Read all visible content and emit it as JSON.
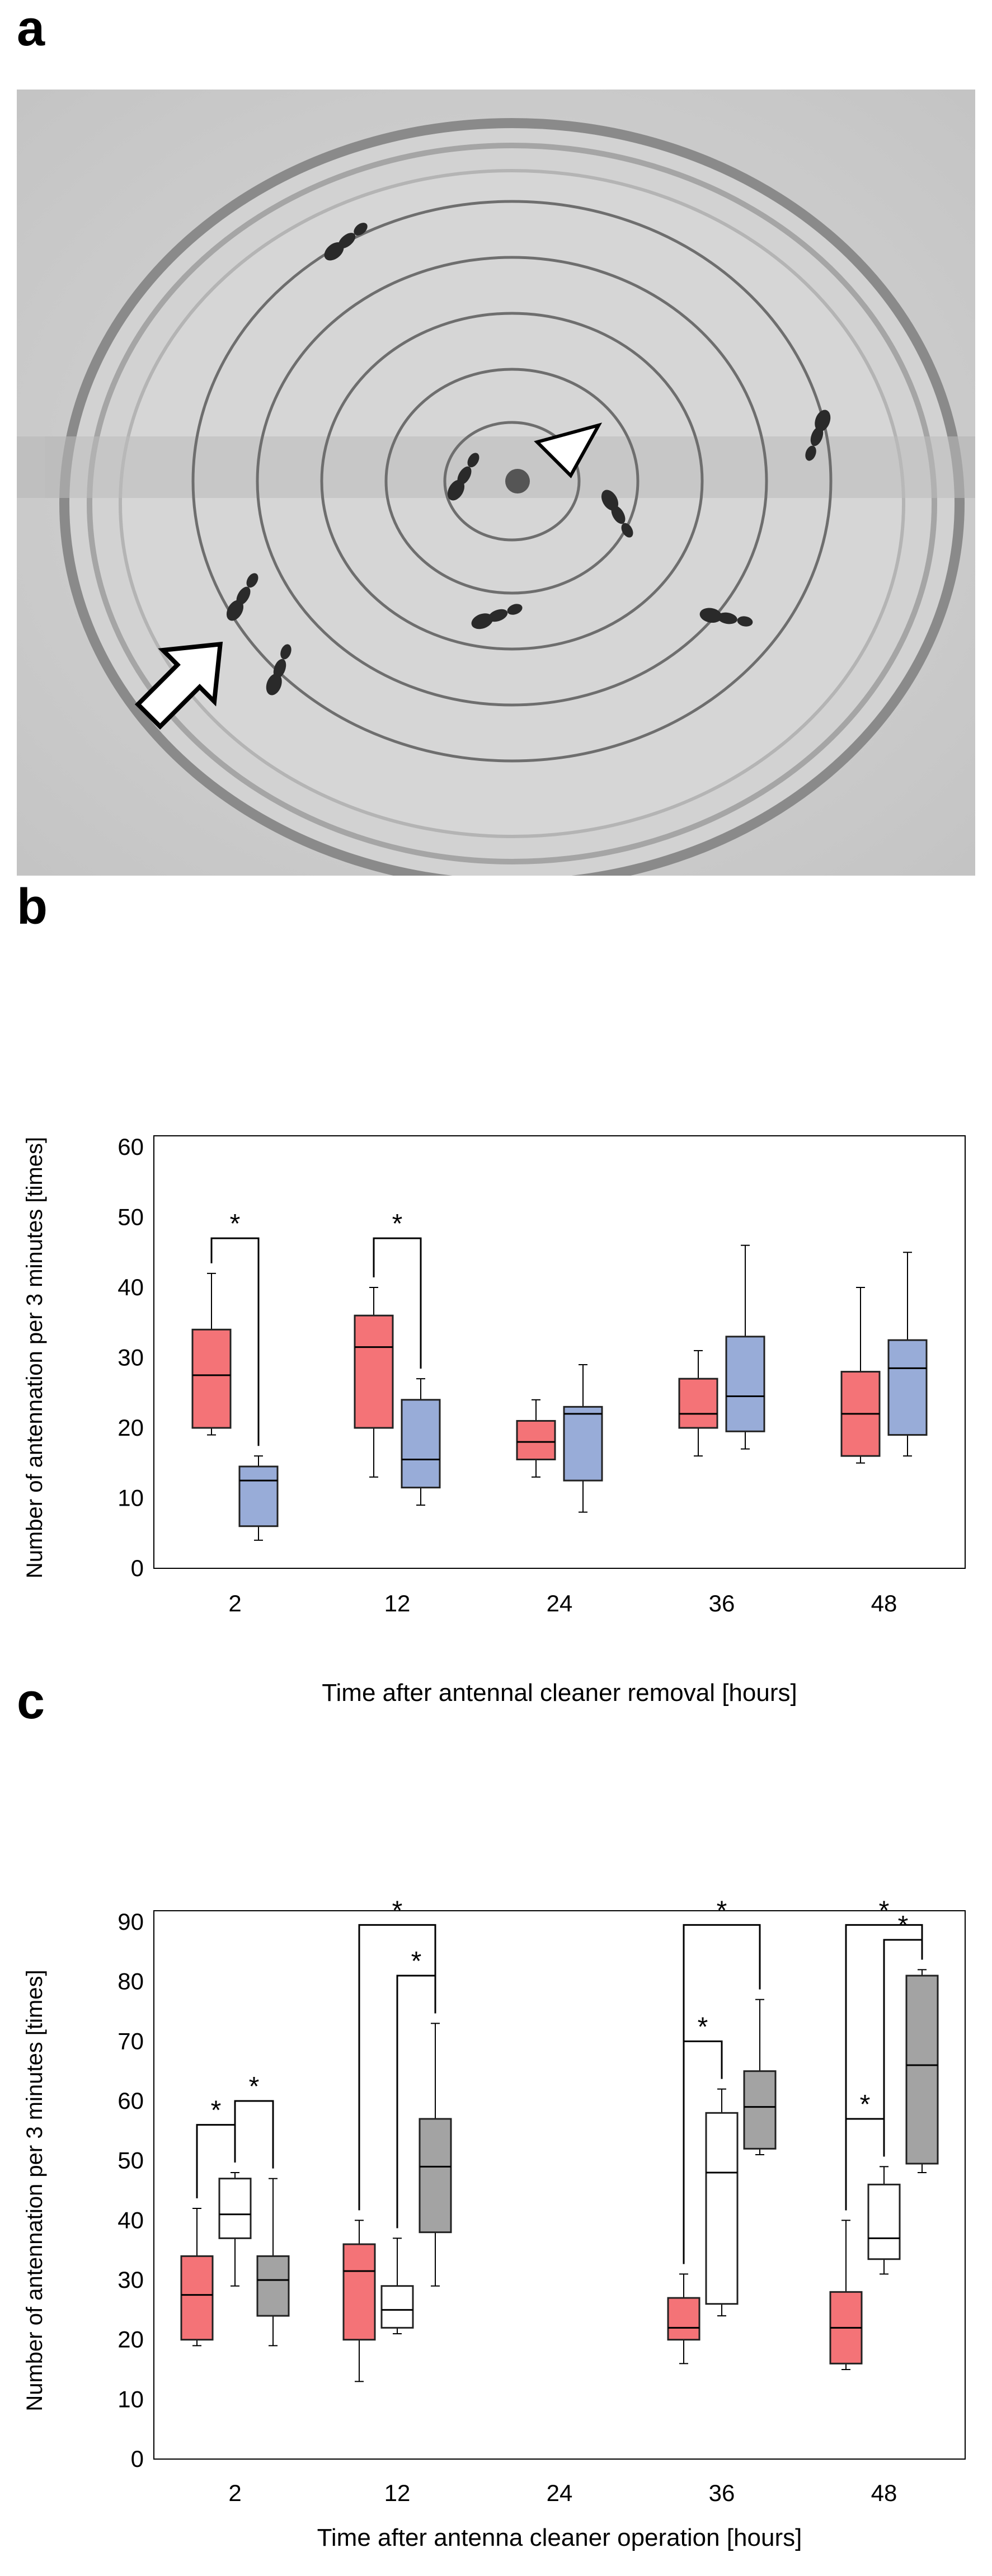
{
  "panels": {
    "a": "a",
    "b": "b",
    "c": "c"
  },
  "photo": {
    "description_icon": "ant-arena-photo",
    "markers": [
      "arrow-icon",
      "triangle-icon"
    ]
  },
  "colors": {
    "red": "#f47377",
    "blue": "#98acd8",
    "white": "#ffffff",
    "gray": "#a3a3a3",
    "line": "#000000"
  },
  "chart_data": [
    {
      "id": "b",
      "type": "box",
      "ylabel": "Number of antennation per 3 minutes [times]",
      "xlabel": "Time after antennal cleaner removal [hours]",
      "ylim": [
        0,
        60
      ],
      "yticks": [
        0,
        10,
        20,
        30,
        40,
        50,
        60
      ],
      "categories": [
        "2",
        "12",
        "24",
        "36",
        "48"
      ],
      "series": [
        {
          "name": "red",
          "color": "#f47377",
          "boxes": [
            {
              "min": 19,
              "q1": 20,
              "median": 27.5,
              "q3": 34,
              "max": 42
            },
            {
              "min": 13,
              "q1": 20,
              "median": 31.5,
              "q3": 36,
              "max": 40
            },
            {
              "min": 13,
              "q1": 15.5,
              "median": 18,
              "q3": 21,
              "max": 24
            },
            {
              "min": 16,
              "q1": 20,
              "median": 22,
              "q3": 27,
              "max": 31
            },
            {
              "min": 15,
              "q1": 16,
              "median": 22,
              "q3": 28,
              "max": 40
            }
          ]
        },
        {
          "name": "blue",
          "color": "#98acd8",
          "boxes": [
            {
              "min": 4,
              "q1": 6,
              "median": 12.5,
              "q3": 14.5,
              "max": 16
            },
            {
              "min": 9,
              "q1": 11.5,
              "median": 15.5,
              "q3": 24,
              "max": 27
            },
            {
              "min": 8,
              "q1": 12.5,
              "median": 22,
              "q3": 23,
              "max": 29
            },
            {
              "min": 17,
              "q1": 19.5,
              "median": 24.5,
              "q3": 33,
              "max": 46
            },
            {
              "min": 16,
              "q1": 19,
              "median": 28.5,
              "q3": 32.5,
              "max": 45
            }
          ]
        }
      ],
      "significance": [
        {
          "category": "2",
          "from": 0,
          "to": 1,
          "label": "*",
          "level": "inner"
        },
        {
          "category": "12",
          "from": 0,
          "to": 1,
          "label": "*",
          "level": "inner"
        }
      ]
    },
    {
      "id": "c",
      "type": "box",
      "ylabel": "Number of antennation per 3 minutes [times]",
      "xlabel": "Time after antenna  cleaner operation [hours]",
      "ylim": [
        0,
        90
      ],
      "yticks": [
        0,
        10,
        20,
        30,
        40,
        50,
        60,
        70,
        80,
        90
      ],
      "categories": [
        "2",
        "12",
        "24",
        "36",
        "48"
      ],
      "series": [
        {
          "name": "red",
          "color": "#f47377",
          "boxes": [
            {
              "min": 19,
              "q1": 20,
              "median": 27.5,
              "q3": 34,
              "max": 42
            },
            {
              "min": 13,
              "q1": 20,
              "median": 31.5,
              "q3": 36,
              "max": 40
            },
            null,
            {
              "min": 16,
              "q1": 20,
              "median": 22,
              "q3": 27,
              "max": 31
            },
            {
              "min": 15,
              "q1": 16,
              "median": 22,
              "q3": 28,
              "max": 40
            }
          ]
        },
        {
          "name": "white",
          "color": "#ffffff",
          "boxes": [
            {
              "min": 29,
              "q1": 37,
              "median": 41,
              "q3": 47,
              "max": 48
            },
            {
              "min": 21,
              "q1": 22,
              "median": 25,
              "q3": 29,
              "max": 37
            },
            null,
            {
              "min": 24,
              "q1": 26,
              "median": 48,
              "q3": 58,
              "max": 62
            },
            {
              "min": 31,
              "q1": 33.5,
              "median": 37,
              "q3": 46,
              "max": 49
            }
          ]
        },
        {
          "name": "gray",
          "color": "#a3a3a3",
          "boxes": [
            {
              "min": 19,
              "q1": 24,
              "median": 30,
              "q3": 34,
              "max": 47
            },
            {
              "min": 29,
              "q1": 38,
              "median": 49,
              "q3": 57,
              "max": 73
            },
            null,
            {
              "min": 51,
              "q1": 52,
              "median": 59,
              "q3": 65,
              "max": 77
            },
            {
              "min": 48,
              "q1": 49.5,
              "median": 66,
              "q3": 81,
              "max": 82
            }
          ]
        }
      ],
      "significance": [
        {
          "category": "2",
          "from": 0,
          "to": 1,
          "label": "*",
          "level": "inner"
        },
        {
          "category": "2",
          "from": 1,
          "to": 2,
          "label": "*",
          "level": "inner2"
        },
        {
          "category": "12",
          "from": 1,
          "to": 2,
          "label": "*",
          "level": "inner"
        },
        {
          "category": "12",
          "from": 0,
          "to": 2,
          "label": "*",
          "level": "outer"
        },
        {
          "category": "36",
          "from": 0,
          "to": 1,
          "label": "*",
          "level": "inner"
        },
        {
          "category": "36",
          "from": 0,
          "to": 2,
          "label": "*",
          "level": "outer"
        },
        {
          "category": "48",
          "from": 0,
          "to": 1,
          "label": "*",
          "level": "inner"
        },
        {
          "category": "48",
          "from": 1,
          "to": 2,
          "label": "*",
          "level": "inner2"
        },
        {
          "category": "48",
          "from": 0,
          "to": 2,
          "label": "*",
          "level": "outer"
        }
      ]
    }
  ]
}
